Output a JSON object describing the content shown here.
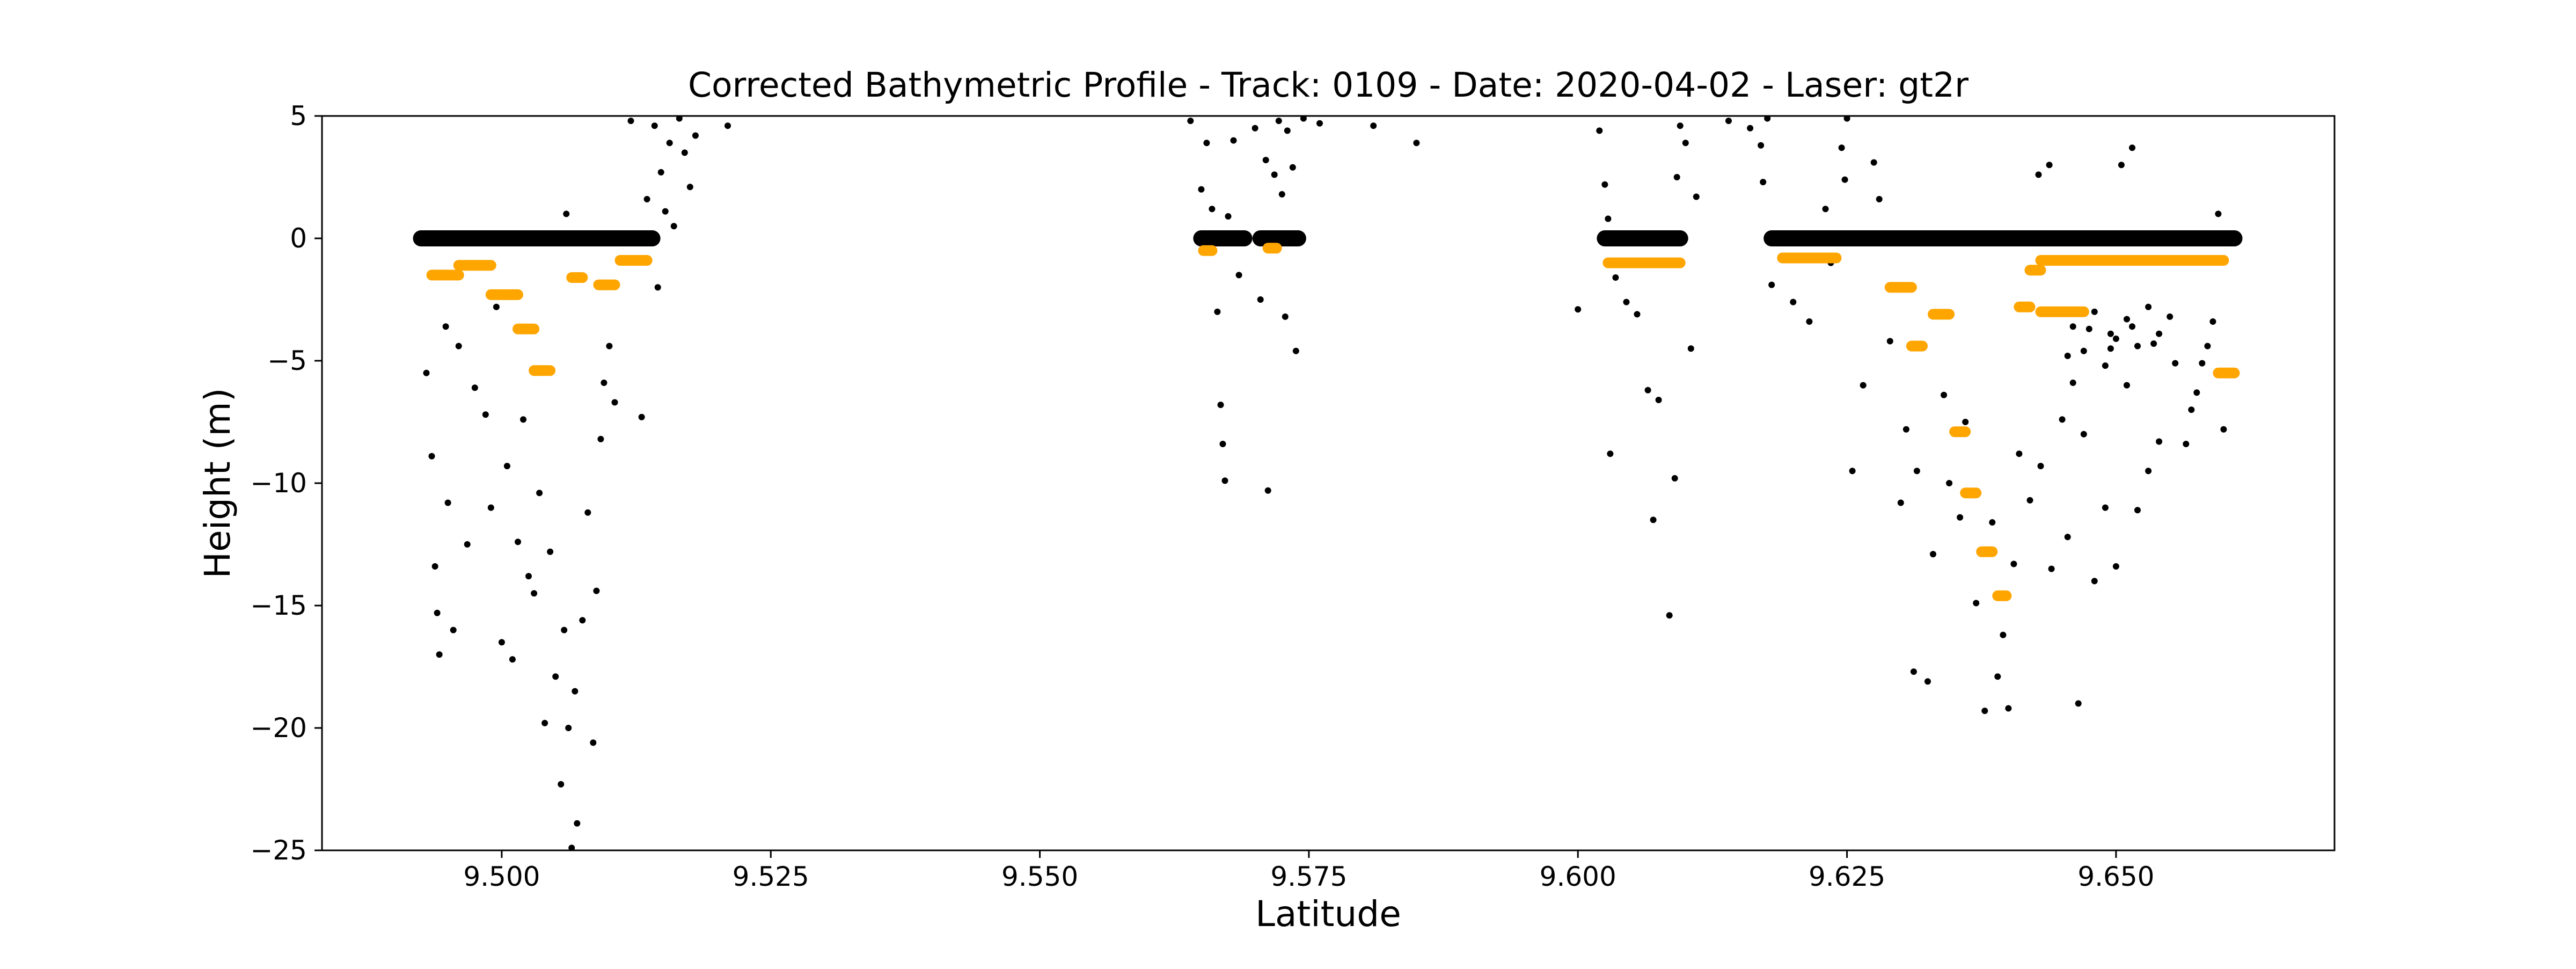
{
  "chart_data": {
    "type": "scatter",
    "title": "Corrected Bathymetric Profile - Track: 0109 - Date: 2020-04-02 - Laser: gt2r",
    "xlabel": "Latitude",
    "ylabel": "Height (m)",
    "xlim": [
      9.4833,
      9.6703
    ],
    "ylim": [
      -25,
      5
    ],
    "xticks": [
      9.5,
      9.525,
      9.55,
      9.575,
      9.6,
      9.625,
      9.65
    ],
    "xtick_labels": [
      "9.500",
      "9.525",
      "9.550",
      "9.575",
      "9.600",
      "9.625",
      "9.650"
    ],
    "yticks": [
      5,
      0,
      -5,
      -10,
      -15,
      -20,
      -25
    ],
    "ytick_labels": [
      "5",
      "0",
      "−5",
      "−10",
      "−15",
      "−20",
      "−25"
    ],
    "grid": false,
    "legend": "none",
    "colors": {
      "photons": "#000000",
      "bathymetry": "#FFA500"
    },
    "series": [
      {
        "role": "photons",
        "color": "#000000",
        "segments": [
          {
            "x0": 9.4925,
            "x1": 9.514,
            "y": 0
          },
          {
            "x0": 9.565,
            "x1": 9.569,
            "y": 0
          },
          {
            "x0": 9.5705,
            "x1": 9.574,
            "y": 0
          },
          {
            "x0": 9.6025,
            "x1": 9.6095,
            "y": 0
          },
          {
            "x0": 9.618,
            "x1": 9.661,
            "y": 0
          }
        ],
        "points": [
          [
            9.493,
            -5.5
          ],
          [
            9.4935,
            -8.9
          ],
          [
            9.4938,
            -13.4
          ],
          [
            9.494,
            -15.3
          ],
          [
            9.4942,
            -17.0
          ],
          [
            9.4948,
            -3.6
          ],
          [
            9.495,
            -10.8
          ],
          [
            9.4955,
            -16.0
          ],
          [
            9.496,
            -4.4
          ],
          [
            9.4968,
            -12.5
          ],
          [
            9.4975,
            -6.1
          ],
          [
            9.4985,
            -7.2
          ],
          [
            9.499,
            -11.0
          ],
          [
            9.4995,
            -2.8
          ],
          [
            9.5,
            -16.5
          ],
          [
            9.5005,
            -9.3
          ],
          [
            9.501,
            -17.2
          ],
          [
            9.5015,
            -12.4
          ],
          [
            9.502,
            -7.4
          ],
          [
            9.5025,
            -13.8
          ],
          [
            9.503,
            -14.5
          ],
          [
            9.5035,
            -10.4
          ],
          [
            9.504,
            -19.8
          ],
          [
            9.5045,
            -12.8
          ],
          [
            9.505,
            -17.9
          ],
          [
            9.5055,
            -22.3
          ],
          [
            9.5058,
            -16.0
          ],
          [
            9.5062,
            -20.0
          ],
          [
            9.5065,
            -24.9
          ],
          [
            9.5068,
            -18.5
          ],
          [
            9.507,
            -23.9
          ],
          [
            9.5075,
            -15.6
          ],
          [
            9.508,
            -11.2
          ],
          [
            9.5085,
            -20.6
          ],
          [
            9.5088,
            -14.4
          ],
          [
            9.5092,
            -8.2
          ],
          [
            9.5095,
            -5.9
          ],
          [
            9.506,
            1.0
          ],
          [
            9.51,
            -4.4
          ],
          [
            9.5105,
            -6.7
          ],
          [
            9.513,
            -7.3
          ],
          [
            9.5142,
            4.6
          ],
          [
            9.5148,
            2.7
          ],
          [
            9.5152,
            1.1
          ],
          [
            9.5156,
            3.9
          ],
          [
            9.516,
            0.5
          ],
          [
            9.5165,
            4.9
          ],
          [
            9.517,
            3.5
          ],
          [
            9.5175,
            2.1
          ],
          [
            9.518,
            4.2
          ],
          [
            9.521,
            4.6
          ],
          [
            9.512,
            4.8
          ],
          [
            9.5135,
            1.6
          ],
          [
            9.5145,
            -2.0
          ],
          [
            9.564,
            4.8
          ],
          [
            9.565,
            2.0
          ],
          [
            9.5655,
            3.9
          ],
          [
            9.566,
            1.2
          ],
          [
            9.5665,
            -3.0
          ],
          [
            9.5668,
            -6.8
          ],
          [
            9.567,
            -8.4
          ],
          [
            9.5672,
            -9.9
          ],
          [
            9.5675,
            0.9
          ],
          [
            9.568,
            4.0
          ],
          [
            9.5685,
            -1.5
          ],
          [
            9.57,
            4.5
          ],
          [
            9.5705,
            -2.5
          ],
          [
            9.571,
            3.2
          ],
          [
            9.5712,
            -10.3
          ],
          [
            9.5718,
            2.6
          ],
          [
            9.5722,
            4.8
          ],
          [
            9.5725,
            1.8
          ],
          [
            9.5728,
            -3.2
          ],
          [
            9.573,
            4.4
          ],
          [
            9.5735,
            2.9
          ],
          [
            9.5738,
            -4.6
          ],
          [
            9.5745,
            4.9
          ],
          [
            9.576,
            4.7
          ],
          [
            9.581,
            4.6
          ],
          [
            9.585,
            3.9
          ],
          [
            9.6,
            -2.9
          ],
          [
            9.602,
            4.4
          ],
          [
            9.6025,
            2.2
          ],
          [
            9.6028,
            0.8
          ],
          [
            9.603,
            -8.8
          ],
          [
            9.6035,
            -1.6
          ],
          [
            9.6045,
            -2.6
          ],
          [
            9.6055,
            -3.1
          ],
          [
            9.6065,
            -6.2
          ],
          [
            9.607,
            -11.5
          ],
          [
            9.6075,
            -6.6
          ],
          [
            9.6085,
            -15.4
          ],
          [
            9.609,
            -9.8
          ],
          [
            9.6092,
            2.5
          ],
          [
            9.6095,
            4.6
          ],
          [
            9.61,
            3.9
          ],
          [
            9.6105,
            -4.5
          ],
          [
            9.611,
            1.7
          ],
          [
            9.614,
            4.8
          ],
          [
            9.616,
            4.5
          ],
          [
            9.617,
            3.8
          ],
          [
            9.6172,
            2.3
          ],
          [
            9.6176,
            4.9
          ],
          [
            9.618,
            -1.9
          ],
          [
            9.62,
            -2.6
          ],
          [
            9.6215,
            -3.4
          ],
          [
            9.623,
            1.2
          ],
          [
            9.6235,
            -1.0
          ],
          [
            9.6245,
            3.7
          ],
          [
            9.6248,
            2.4
          ],
          [
            9.625,
            4.9
          ],
          [
            9.6255,
            -9.5
          ],
          [
            9.6265,
            -6.0
          ],
          [
            9.6275,
            3.1
          ],
          [
            9.628,
            1.6
          ],
          [
            9.629,
            -4.2
          ],
          [
            9.63,
            -10.8
          ],
          [
            9.6305,
            -7.8
          ],
          [
            9.6312,
            -17.7
          ],
          [
            9.6315,
            -9.5
          ],
          [
            9.6325,
            -18.1
          ],
          [
            9.633,
            -12.9
          ],
          [
            9.634,
            -6.4
          ],
          [
            9.6345,
            -10.0
          ],
          [
            9.6355,
            -11.4
          ],
          [
            9.636,
            -7.5
          ],
          [
            9.637,
            -14.9
          ],
          [
            9.6378,
            -19.3
          ],
          [
            9.6385,
            -11.6
          ],
          [
            9.639,
            -17.9
          ],
          [
            9.6395,
            -16.2
          ],
          [
            9.64,
            -19.2
          ],
          [
            9.6405,
            -13.3
          ],
          [
            9.641,
            -8.8
          ],
          [
            9.642,
            -10.7
          ],
          [
            9.6428,
            2.6
          ],
          [
            9.643,
            -9.3
          ],
          [
            9.6438,
            3.0
          ],
          [
            9.644,
            -13.5
          ],
          [
            9.645,
            -7.4
          ],
          [
            9.6455,
            -12.2
          ],
          [
            9.646,
            -5.9
          ],
          [
            9.6465,
            -19.0
          ],
          [
            9.647,
            -8.0
          ],
          [
            9.648,
            -14.0
          ],
          [
            9.649,
            -11.0
          ],
          [
            9.6495,
            -3.9
          ],
          [
            9.65,
            -13.4
          ],
          [
            9.6505,
            3.0
          ],
          [
            9.651,
            -6.0
          ],
          [
            9.6515,
            3.7
          ],
          [
            9.652,
            -11.1
          ],
          [
            9.653,
            -9.5
          ],
          [
            9.654,
            -8.3
          ],
          [
            9.6555,
            -5.1
          ],
          [
            9.6565,
            -8.4
          ],
          [
            9.657,
            -7.0
          ],
          [
            9.6575,
            -6.3
          ],
          [
            9.658,
            -5.1
          ],
          [
            9.6585,
            -4.4
          ],
          [
            9.659,
            -3.4
          ],
          [
            9.6595,
            1.0
          ],
          [
            9.66,
            -7.8
          ],
          [
            9.646,
            -3.6
          ],
          [
            9.647,
            -4.6
          ],
          [
            9.648,
            -3.0
          ],
          [
            9.649,
            -5.2
          ],
          [
            9.65,
            -4.1
          ],
          [
            9.651,
            -3.3
          ],
          [
            9.652,
            -4.4
          ],
          [
            9.653,
            -2.8
          ],
          [
            9.654,
            -3.9
          ],
          [
            9.655,
            -3.2
          ],
          [
            9.6455,
            -4.8
          ],
          [
            9.6475,
            -3.7
          ],
          [
            9.6495,
            -4.5
          ],
          [
            9.6515,
            -3.6
          ],
          [
            9.6535,
            -4.3
          ]
        ]
      },
      {
        "role": "bathymetry",
        "color": "#FFA500",
        "segments": [
          {
            "x0": 9.4935,
            "x1": 9.496,
            "y": -1.5
          },
          {
            "x0": 9.496,
            "x1": 9.499,
            "y": -1.1
          },
          {
            "x0": 9.499,
            "x1": 9.5015,
            "y": -2.3
          },
          {
            "x0": 9.5015,
            "x1": 9.503,
            "y": -3.7
          },
          {
            "x0": 9.503,
            "x1": 9.5045,
            "y": -5.4
          },
          {
            "x0": 9.5065,
            "x1": 9.5075,
            "y": -1.6
          },
          {
            "x0": 9.509,
            "x1": 9.5105,
            "y": -1.9
          },
          {
            "x0": 9.511,
            "x1": 9.5135,
            "y": -0.9
          },
          {
            "x0": 9.5652,
            "x1": 9.566,
            "y": -0.5
          },
          {
            "x0": 9.5712,
            "x1": 9.572,
            "y": -0.4
          },
          {
            "x0": 9.6028,
            "x1": 9.6095,
            "y": -1.0
          },
          {
            "x0": 9.619,
            "x1": 9.624,
            "y": -0.8
          },
          {
            "x0": 9.629,
            "x1": 9.631,
            "y": -2.0
          },
          {
            "x0": 9.631,
            "x1": 9.632,
            "y": -4.4
          },
          {
            "x0": 9.633,
            "x1": 9.6345,
            "y": -3.1
          },
          {
            "x0": 9.635,
            "x1": 9.636,
            "y": -7.9
          },
          {
            "x0": 9.636,
            "x1": 9.637,
            "y": -10.4
          },
          {
            "x0": 9.6375,
            "x1": 9.6385,
            "y": -12.8
          },
          {
            "x0": 9.639,
            "x1": 9.6398,
            "y": -14.6
          },
          {
            "x0": 9.641,
            "x1": 9.642,
            "y": -2.8
          },
          {
            "x0": 9.642,
            "x1": 9.643,
            "y": -1.3
          },
          {
            "x0": 9.643,
            "x1": 9.66,
            "y": -0.9
          },
          {
            "x0": 9.643,
            "x1": 9.647,
            "y": -3.0
          },
          {
            "x0": 9.6595,
            "x1": 9.661,
            "y": -5.5
          }
        ]
      }
    ]
  }
}
